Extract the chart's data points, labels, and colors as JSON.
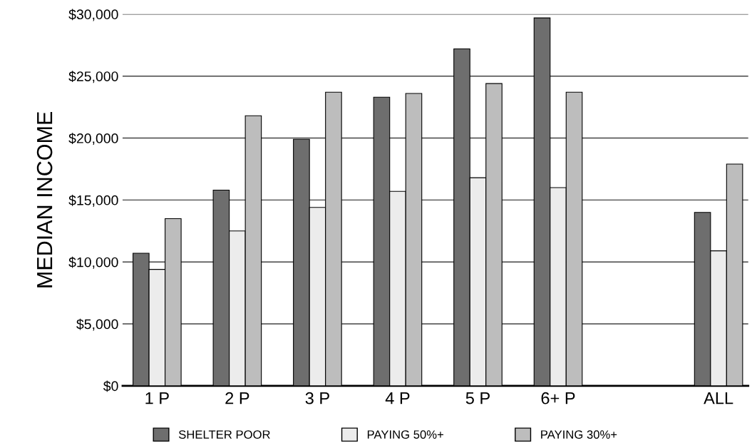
{
  "chart_data": {
    "type": "bar",
    "ylabel": "MEDIAN INCOME",
    "categories": [
      "1 P",
      "2 P",
      "3 P",
      "4 P",
      "5 P",
      "6+ P",
      null,
      "ALL"
    ],
    "series": [
      {
        "name": "SHELTER POOR",
        "color": "#6e6e6e",
        "values": [
          10700,
          15800,
          19900,
          23300,
          27200,
          29700,
          null,
          14000
        ]
      },
      {
        "name": "PAYING 50%+",
        "color": "#ececec",
        "values": [
          9400,
          12500,
          14400,
          15700,
          16800,
          16000,
          null,
          10900
        ]
      },
      {
        "name": "PAYING 30%+",
        "color": "#bdbdbd",
        "values": [
          13500,
          21800,
          23700,
          23600,
          24400,
          23700,
          null,
          17900
        ]
      }
    ],
    "ylim": [
      0,
      30000
    ],
    "yticks": [
      {
        "value": 0,
        "label": "$0"
      },
      {
        "value": 5000,
        "label": "$5,000"
      },
      {
        "value": 10000,
        "label": "$10,000"
      },
      {
        "value": 15000,
        "label": "$15,000"
      },
      {
        "value": 20000,
        "label": "$20,000"
      },
      {
        "value": 25000,
        "label": "$25,000"
      },
      {
        "value": 30000,
        "label": "$30,000"
      }
    ],
    "grid": "y",
    "legend": "bottom"
  }
}
